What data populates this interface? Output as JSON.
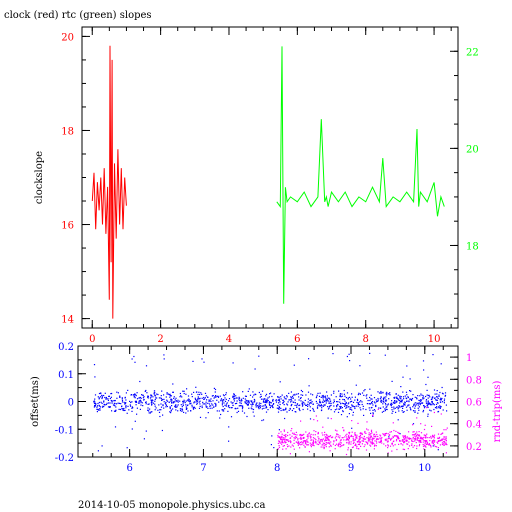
{
  "title": "clock (red) rtc (green) slopes",
  "footer": "2014-10-05  monopole.physics.ubc.ca",
  "colors": {
    "clock": "#ff0000",
    "rtc": "#00ff00",
    "offset": "#0000ff",
    "rndtrip": "#ff00ff",
    "axis": "#000000"
  },
  "chart_data": [
    {
      "type": "line",
      "ylabel": "clockslope",
      "xlim": [
        -0.3,
        10.7
      ],
      "ylim": [
        13.8,
        20.2
      ],
      "y2lim": [
        16.3,
        22.5
      ],
      "x_ticks": [
        "0",
        "2",
        "4",
        "6",
        "8",
        "10"
      ],
      "y_ticks": [
        "14",
        "16",
        "18",
        "20"
      ],
      "y2_ticks": [
        "18",
        "20",
        "22"
      ],
      "series": [
        {
          "name": "clock",
          "axis": "left",
          "x": [
            0.0,
            0.05,
            0.1,
            0.15,
            0.2,
            0.25,
            0.3,
            0.35,
            0.4,
            0.45,
            0.5,
            0.52,
            0.55,
            0.58,
            0.6,
            0.65,
            0.7,
            0.75,
            0.8,
            0.85,
            0.9,
            0.95,
            1.0
          ],
          "y": [
            16.5,
            17.1,
            15.9,
            16.9,
            16.3,
            17.0,
            16.0,
            17.2,
            15.8,
            16.8,
            14.4,
            19.8,
            15.2,
            19.5,
            14.0,
            17.3,
            15.7,
            17.6,
            16.0,
            17.2,
            15.9,
            17.0,
            16.4
          ]
        },
        {
          "name": "rtc",
          "axis": "right",
          "x": [
            5.4,
            5.5,
            5.55,
            5.6,
            5.65,
            5.7,
            5.8,
            6.0,
            6.2,
            6.4,
            6.6,
            6.7,
            6.8,
            6.85,
            6.9,
            7.0,
            7.2,
            7.4,
            7.6,
            7.8,
            8.0,
            8.2,
            8.4,
            8.5,
            8.6,
            8.8,
            9.0,
            9.2,
            9.4,
            9.5,
            9.55,
            9.6,
            9.8,
            10.0,
            10.1,
            10.2,
            10.3
          ],
          "y": [
            18.9,
            18.8,
            22.1,
            16.8,
            19.2,
            18.9,
            19.0,
            18.9,
            19.1,
            18.8,
            19.0,
            20.6,
            18.9,
            19.0,
            18.8,
            19.1,
            18.9,
            19.1,
            18.8,
            19.0,
            18.9,
            19.2,
            18.9,
            19.8,
            18.8,
            19.0,
            18.9,
            19.1,
            18.9,
            20.4,
            18.8,
            19.1,
            18.9,
            19.3,
            18.6,
            19.0,
            18.8
          ]
        }
      ]
    },
    {
      "type": "scatter",
      "ylabel": "offset(ms)",
      "y2label": "rnd-trip(ms)",
      "xlim": [
        5.3,
        10.45
      ],
      "ylim": [
        -0.2,
        0.2
      ],
      "y2lim": [
        0.1,
        1.1
      ],
      "x_ticks": [
        "6",
        "7",
        "8",
        "9",
        "10"
      ],
      "y_ticks": [
        "-0.2",
        "-0.1",
        "0",
        "0.1",
        "0.2"
      ],
      "y2_ticks": [
        "0.2",
        "0.4",
        "0.6",
        "0.8",
        "1"
      ],
      "series": [
        {
          "name": "offset",
          "axis": "left",
          "x_range": [
            5.5,
            10.3
          ],
          "center": 0.0,
          "spread": 0.02
        },
        {
          "name": "rnd-trip",
          "axis": "right",
          "x_range": [
            8.0,
            10.3
          ],
          "center": 0.26,
          "spread": 0.04
        }
      ]
    }
  ]
}
